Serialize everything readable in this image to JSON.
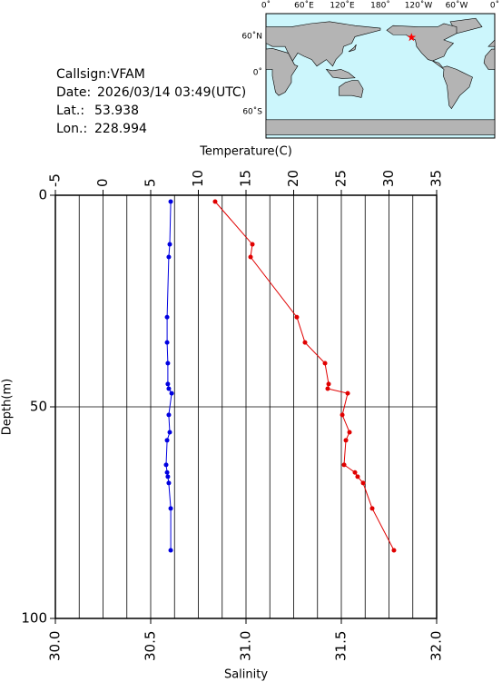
{
  "info": {
    "callsign": "Callsign:VFAM",
    "date_label": "Date:",
    "date": "2026/03/14 03:49(UTC)",
    "lat_label": "Lat.:",
    "lat": 53.938,
    "lon_label": "Lon.:",
    "lon": 228.994
  },
  "map": {
    "lon_labels": [
      "0˚",
      "60˚E",
      "120˚E",
      "180˚",
      "120˚W",
      "60˚W",
      "0˚"
    ],
    "lat_labels": [
      "60˚N",
      "0˚",
      "60˚S"
    ]
  },
  "chart_data": {
    "type": "profile",
    "x2label": "Temperature(C)",
    "xlabel": "Salinity",
    "ylabel": "Depth(m)",
    "x2lim": [
      -5,
      35
    ],
    "x2ticks": [
      -5,
      0,
      5,
      10,
      15,
      20,
      25,
      30,
      35
    ],
    "xlim": [
      30,
      32
    ],
    "xticks": [
      {
        "value": 30,
        "label": "30.0"
      },
      {
        "value": 30.5,
        "label": "30.5"
      },
      {
        "value": 31,
        "label": "31.0"
      },
      {
        "value": 31.5,
        "label": "31.5"
      },
      {
        "value": 32,
        "label": "32.0"
      }
    ],
    "ylim": [
      0,
      100
    ],
    "yticks": [
      0,
      50,
      100
    ],
    "y_inverted": true,
    "x2grid": [
      -2.5,
      0,
      2.5,
      5,
      7.5,
      10,
      12.5,
      15,
      17.5,
      20,
      22.5,
      25,
      27.5,
      30,
      32.5
    ],
    "ygrid": [
      50
    ],
    "depth": [
      1.5,
      11.6,
      14.6,
      28.8,
      34.8,
      39.7,
      44.6,
      45.7,
      46.8,
      51.9,
      56.0,
      57.9,
      63.7,
      65.5,
      66.5,
      68.0,
      74.0,
      83.9
    ],
    "series": [
      {
        "axis": "x2",
        "color": "#e00000",
        "values": [
          11.76,
          15.67,
          15.48,
          20.33,
          21.19,
          23.29,
          23.67,
          23.57,
          25.67,
          25.1,
          25.86,
          25.48,
          25.29,
          26.43,
          26.71,
          27.29,
          28.24,
          30.52
        ]
      },
      {
        "axis": "x",
        "color": "#0000e0",
        "values": [
          30.605,
          30.6,
          30.595,
          30.586,
          30.586,
          30.59,
          30.59,
          30.595,
          30.61,
          30.595,
          30.6,
          30.586,
          30.581,
          30.586,
          30.59,
          30.595,
          30.605,
          30.605
        ]
      }
    ]
  }
}
